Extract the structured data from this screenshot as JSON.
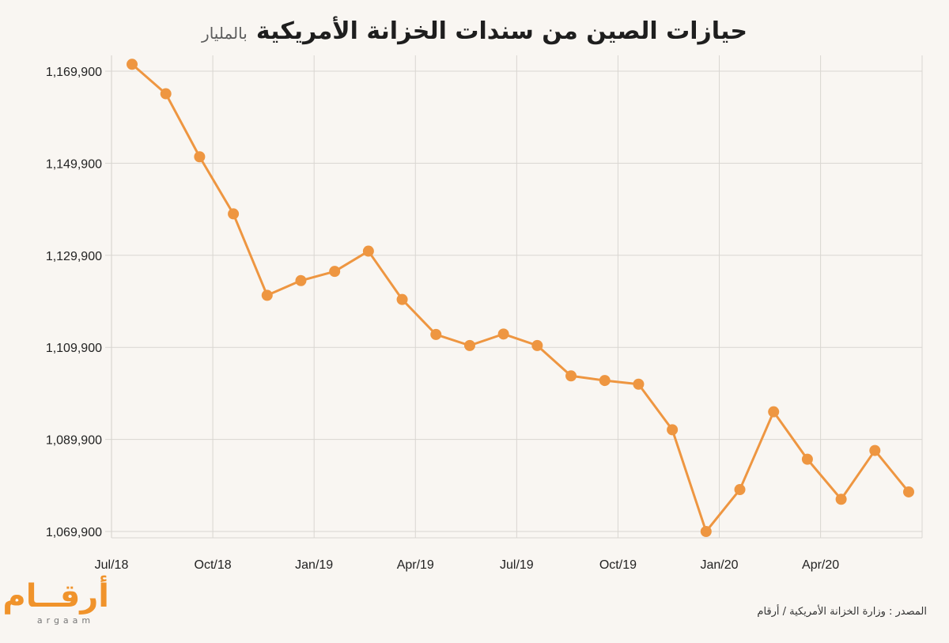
{
  "title": "حيازات الصين من سندات الخزانة الأمريكية",
  "unit": "بالمليار",
  "source_label": "المصدر :",
  "source_text": "وزارة الخزانة الأمريكية / أرقام",
  "logo": {
    "word": "أرقــام",
    "sub": "argaam"
  },
  "colors": {
    "line": "#ee9641",
    "grid": "#d9d6d1",
    "axis_text": "#222222"
  },
  "chart_data": {
    "type": "line",
    "title": "حيازات الصين من سندات الخزانة الأمريكية",
    "xlabel": "",
    "ylabel": "",
    "grid": true,
    "ylim": [
      1069900,
      1169900
    ],
    "yticks": [
      1069900,
      1089900,
      1109900,
      1129900,
      1149900,
      1169900
    ],
    "ytick_labels": [
      "1,069,900",
      "1,089,900",
      "1,109,900",
      "1,129,900",
      "1,149,900",
      "1,169,900"
    ],
    "xticks": [
      "Jul/18",
      "Oct/18",
      "Jan/19",
      "Apr/19",
      "Jul/19",
      "Oct/19",
      "Jan/20",
      "Apr/20"
    ],
    "x": [
      "Jul/18",
      "Aug/18",
      "Sep/18",
      "Oct/18",
      "Nov/18",
      "Dec/18",
      "Jan/19",
      "Feb/19",
      "Mar/19",
      "Apr/19",
      "May/19",
      "Jun/19",
      "Jul/19",
      "Aug/19",
      "Sep/19",
      "Oct/19",
      "Nov/19",
      "Dec/19",
      "Jan/20",
      "Feb/20",
      "Mar/20",
      "Apr/20",
      "May/20",
      "Jun/20"
    ],
    "series": [
      {
        "values": [
          1171400,
          1165000,
          1151300,
          1138900,
          1121200,
          1124400,
          1126400,
          1130800,
          1120300,
          1112700,
          1110300,
          1112800,
          1110300,
          1103700,
          1102700,
          1101900,
          1092000,
          1069900,
          1079000,
          1095900,
          1085600,
          1076900,
          1087500,
          1078500
        ]
      }
    ]
  }
}
